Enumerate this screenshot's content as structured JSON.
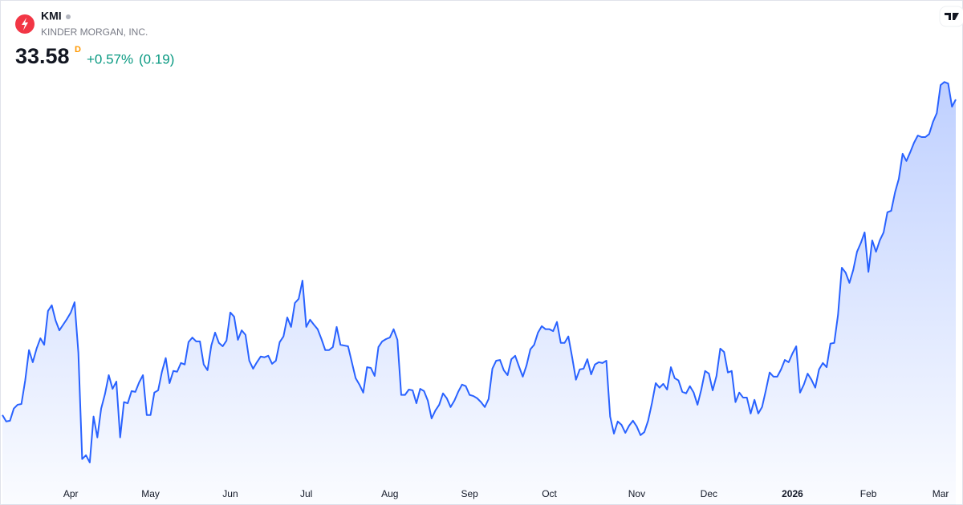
{
  "header": {
    "symbol": "KMI",
    "name": "KINDER MORGAN, INC.",
    "price": "33.58",
    "interval": "D",
    "change_percent": "+0.57%",
    "change": "(0.19)"
  },
  "chart_data": {
    "type": "area",
    "series": [
      {
        "color": "#2962ff",
        "values": [
          25.27,
          25.1,
          25.12,
          25.44,
          25.54,
          25.56,
          26.18,
          26.98,
          26.66,
          27.02,
          27.29,
          27.12,
          28.01,
          28.16,
          27.76,
          27.5,
          27.65,
          27.8,
          27.97,
          28.24,
          26.91,
          24.11,
          24.21,
          24.02,
          25.23,
          24.68,
          25.44,
          25.82,
          26.32,
          25.96,
          26.15,
          24.68,
          25.61,
          25.58,
          25.9,
          25.88,
          26.13,
          26.32,
          25.27,
          25.27,
          25.86,
          25.92,
          26.41,
          26.77,
          26.11,
          26.43,
          26.41,
          26.64,
          26.6,
          27.19,
          27.31,
          27.21,
          27.21,
          26.6,
          26.45,
          27.1,
          27.44,
          27.17,
          27.08,
          27.23,
          27.97,
          27.86,
          27.25,
          27.5,
          27.38,
          26.7,
          26.49,
          26.66,
          26.81,
          26.79,
          26.83,
          26.62,
          26.7,
          27.19,
          27.34,
          27.84,
          27.59,
          28.22,
          28.33,
          28.81,
          27.59,
          27.78,
          27.65,
          27.53,
          27.27,
          26.98,
          26.98,
          27.06,
          27.59,
          27.12,
          27.1,
          27.08,
          26.66,
          26.24,
          26.07,
          25.86,
          26.53,
          26.51,
          26.3,
          27.06,
          27.21,
          27.27,
          27.31,
          27.53,
          27.25,
          25.8,
          25.8,
          25.94,
          25.92,
          25.58,
          25.96,
          25.9,
          25.65,
          25.18,
          25.39,
          25.54,
          25.84,
          25.71,
          25.48,
          25.65,
          25.88,
          26.07,
          26.03,
          25.8,
          25.77,
          25.71,
          25.61,
          25.48,
          25.69,
          26.49,
          26.7,
          26.72,
          26.45,
          26.32,
          26.74,
          26.83,
          26.55,
          26.28,
          26.58,
          27.0,
          27.12,
          27.44,
          27.61,
          27.53,
          27.53,
          27.48,
          27.72,
          27.17,
          27.17,
          27.34,
          26.79,
          26.2,
          26.47,
          26.49,
          26.74,
          26.34,
          26.6,
          26.66,
          26.64,
          26.7,
          25.23,
          24.78,
          25.1,
          25.01,
          24.8,
          24.99,
          25.12,
          24.97,
          24.74,
          24.82,
          25.12,
          25.58,
          26.11,
          25.99,
          26.09,
          25.94,
          26.53,
          26.24,
          26.18,
          25.88,
          25.84,
          26.03,
          25.86,
          25.54,
          25.94,
          26.43,
          26.36,
          25.92,
          26.3,
          27.02,
          26.93,
          26.39,
          26.43,
          25.61,
          25.86,
          25.73,
          25.73,
          25.31,
          25.67,
          25.31,
          25.48,
          25.92,
          26.39,
          26.28,
          26.28,
          26.47,
          26.72,
          26.66,
          26.89,
          27.08,
          25.86,
          26.07,
          26.36,
          26.2,
          25.99,
          26.47,
          26.64,
          26.53,
          27.15,
          27.17,
          27.91,
          29.15,
          29.02,
          28.75,
          29.09,
          29.57,
          29.8,
          30.08,
          29.04,
          29.87,
          29.57,
          29.87,
          30.08,
          30.61,
          30.65,
          31.13,
          31.49,
          32.15,
          31.96,
          32.19,
          32.44,
          32.63,
          32.59,
          32.59,
          32.67,
          32.99,
          33.22,
          33.96,
          34.04,
          34.0,
          33.39,
          33.58
        ]
      }
    ],
    "xlim": [
      0,
      251
    ],
    "xticks": [
      {
        "value": 18,
        "label": "Apr"
      },
      {
        "value": 39,
        "label": "May"
      },
      {
        "value": 60,
        "label": "Jun"
      },
      {
        "value": 80,
        "label": "Jul"
      },
      {
        "value": 102,
        "label": "Aug"
      },
      {
        "value": 123,
        "label": "Sep"
      },
      {
        "value": 144,
        "label": "Oct"
      },
      {
        "value": 167,
        "label": "Nov"
      },
      {
        "value": 186,
        "label": "Dec"
      },
      {
        "value": 208,
        "label": "2026"
      },
      {
        "value": 228,
        "label": "Feb"
      },
      {
        "value": 247,
        "label": "Mar"
      }
    ],
    "ylim": [
      22.9,
      36.2
    ]
  }
}
